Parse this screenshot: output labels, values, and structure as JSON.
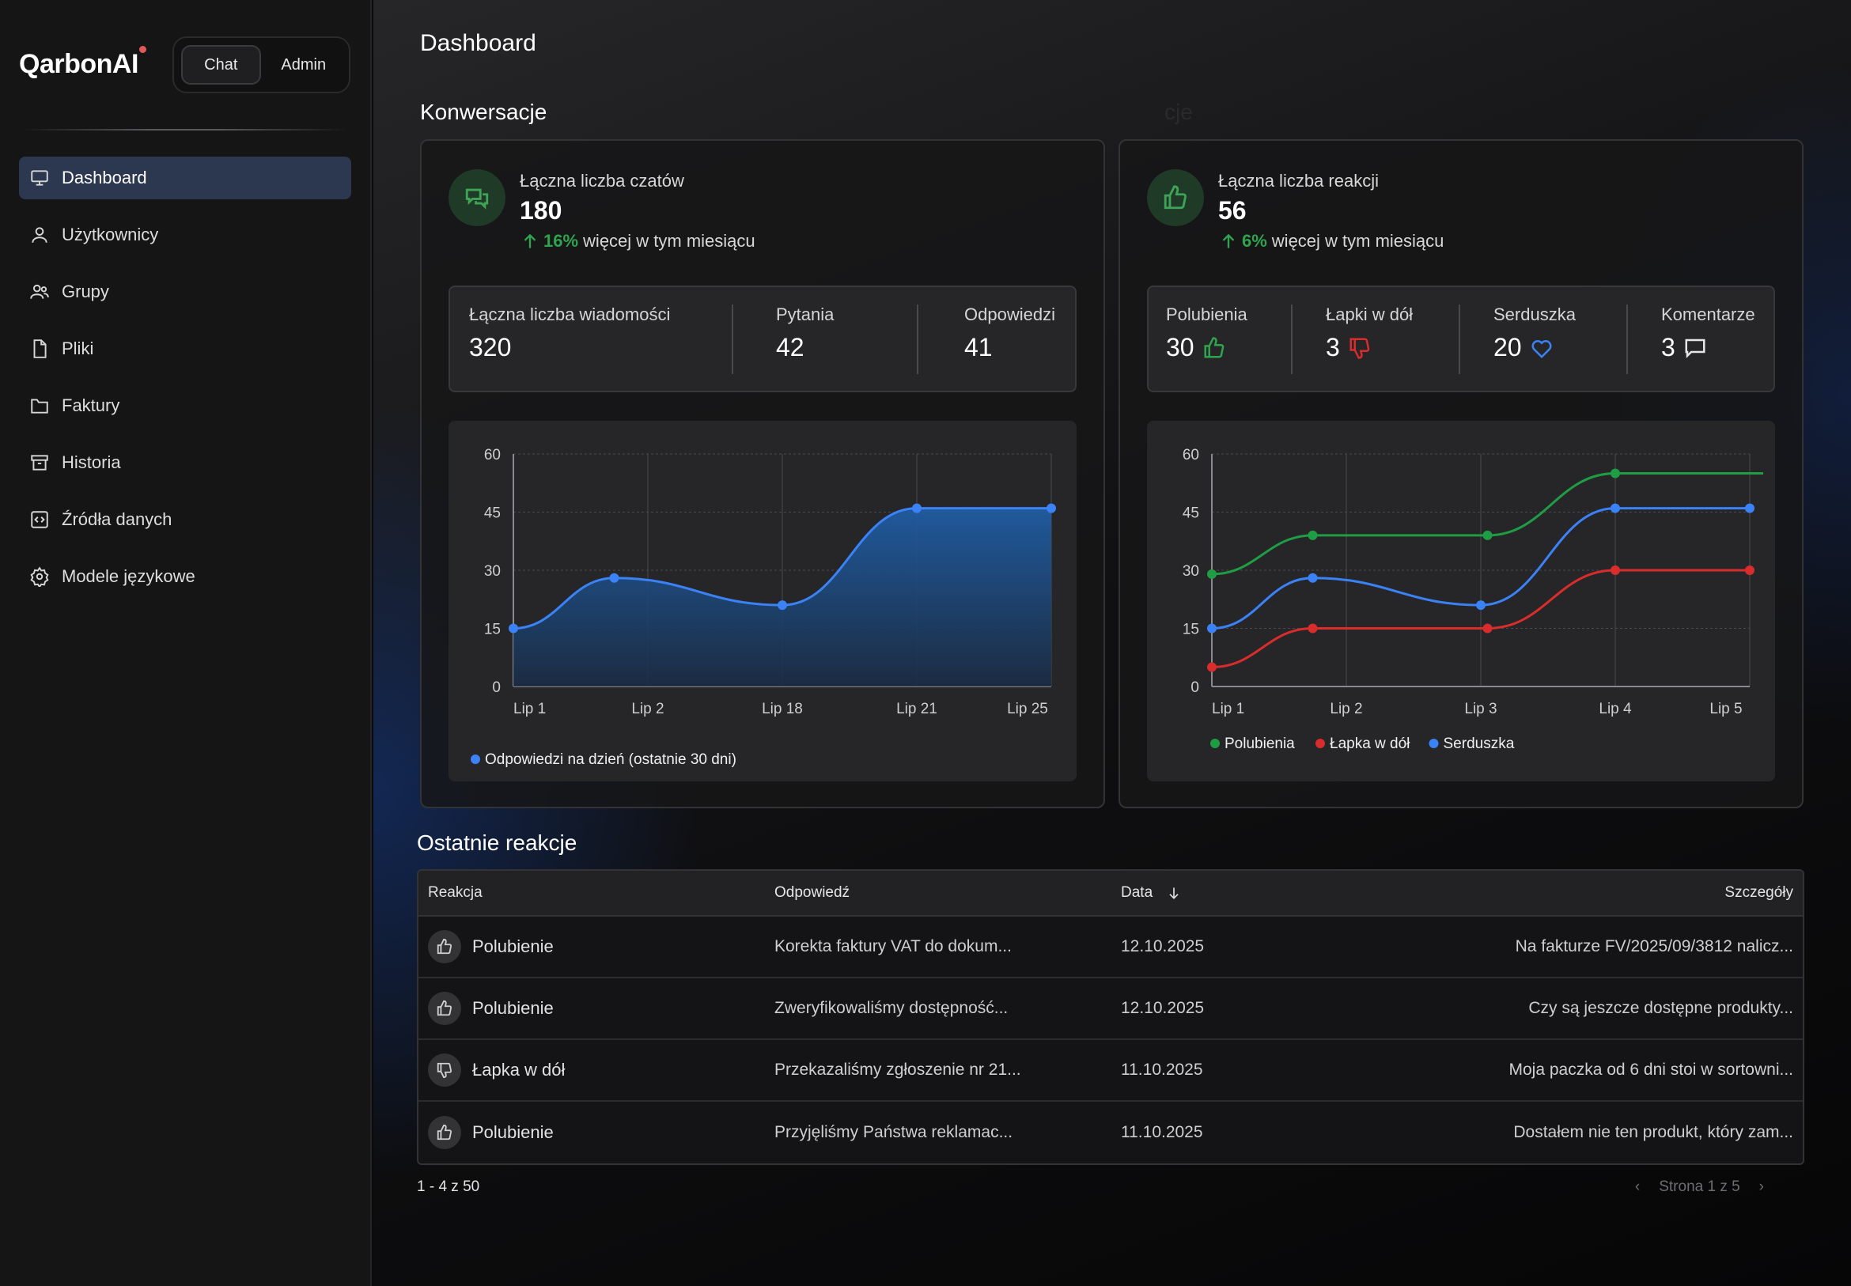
{
  "brand": "QarbonAI",
  "mode_switch": {
    "chat": "Chat",
    "admin": "Admin",
    "active": "Chat"
  },
  "sidebar": {
    "items": [
      {
        "label": "Dashboard",
        "icon": "monitor-icon",
        "active": true
      },
      {
        "label": "Użytkownicy",
        "icon": "user-icon"
      },
      {
        "label": "Grupy",
        "icon": "users-icon"
      },
      {
        "label": "Pliki",
        "icon": "file-icon"
      },
      {
        "label": "Faktury",
        "icon": "folder-icon"
      },
      {
        "label": "Historia",
        "icon": "archive-icon"
      },
      {
        "label": "Źródła danych",
        "icon": "code-file-icon"
      },
      {
        "label": "Modele językowe",
        "icon": "gear-icon"
      }
    ]
  },
  "header": {
    "title": "Dashboard"
  },
  "sections": {
    "conversations": "Konwersacje",
    "reactions_hidden": "cje",
    "recent": "Ostatnie reakcje"
  },
  "conversations": {
    "kpi_label": "Łączna liczba czatów",
    "kpi_value": "180",
    "trend_pct": "16%",
    "trend_text": "więcej w tym miesiącu",
    "stats": [
      {
        "label": "Łączna liczba wiadomości",
        "value": "320"
      },
      {
        "label": "Pytania",
        "value": "42"
      },
      {
        "label": "Odpowiedzi",
        "value": "41"
      }
    ]
  },
  "reactions": {
    "kpi_label": "Łączna liczba reakcji",
    "kpi_value": "56",
    "trend_pct": "6%",
    "trend_text": "więcej w tym miesiącu",
    "stats": [
      {
        "label": "Polubienia",
        "value": "30",
        "icon": "thumbs-up-icon"
      },
      {
        "label": "Łapki w dół",
        "value": "3",
        "icon": "thumbs-down-icon"
      },
      {
        "label": "Serduszka",
        "value": "20",
        "icon": "heart-icon"
      },
      {
        "label": "Komentarze",
        "value": "3",
        "icon": "comment-icon"
      }
    ]
  },
  "chart_data": [
    {
      "type": "area",
      "categories": [
        "Lip 1",
        "Lip 2",
        "Lip 18",
        "Lip 21",
        "Lip 25"
      ],
      "ylim": [
        0,
        60
      ],
      "yticks": [
        0,
        15,
        30,
        45,
        60
      ],
      "series": [
        {
          "name": "Odpowiedzi na dzień (ostatnie 30 dni)",
          "color": "#3b82f6",
          "points": [
            [
              0,
              15
            ],
            [
              0.75,
              28
            ],
            [
              2.0,
              21
            ],
            [
              3.0,
              46
            ],
            [
              4.0,
              46
            ]
          ]
        }
      ],
      "grid": true,
      "legend": "bottom-left"
    },
    {
      "type": "line",
      "categories": [
        "Lip 1",
        "Lip 2",
        "Lip 3",
        "Lip 4",
        "Lip 5"
      ],
      "ylim": [
        0,
        60
      ],
      "yticks": [
        0,
        15,
        30,
        45,
        60
      ],
      "series": [
        {
          "name": "Polubienia",
          "color": "#1f9d45",
          "points": [
            [
              0,
              29
            ],
            [
              0.75,
              39
            ],
            [
              2.05,
              39
            ],
            [
              3.0,
              55
            ],
            [
              4.1,
              55
            ]
          ]
        },
        {
          "name": "Łapka w dół",
          "color": "#d92c2c",
          "points": [
            [
              0,
              5
            ],
            [
              0.75,
              15
            ],
            [
              2.05,
              15
            ],
            [
              3.0,
              30
            ],
            [
              4.0,
              30
            ]
          ]
        },
        {
          "name": "Serduszka",
          "color": "#3b82f6",
          "points": [
            [
              0,
              15
            ],
            [
              0.75,
              28
            ],
            [
              2.0,
              21
            ],
            [
              3.0,
              46
            ],
            [
              4.0,
              46
            ]
          ]
        }
      ],
      "grid": true,
      "legend": "bottom-left"
    }
  ],
  "table": {
    "headers": {
      "reaction": "Reakcja",
      "answer": "Odpowiedź",
      "date": "Data",
      "details": "Szczegóły"
    },
    "rows": [
      {
        "reaction": "Polubienie",
        "icon": "thumbs-up-icon",
        "answer": "Korekta faktury VAT do dokum...",
        "date": "12.10.2025",
        "details": "Na fakturze FV/2025/09/3812 nalicz..."
      },
      {
        "reaction": "Polubienie",
        "icon": "thumbs-up-icon",
        "answer": "Zweryfikowaliśmy dostępność...",
        "date": "12.10.2025",
        "details": "Czy są jeszcze dostępne produkty..."
      },
      {
        "reaction": "Łapka w dół",
        "icon": "thumbs-down-icon",
        "answer": "Przekazaliśmy zgłoszenie nr 21...",
        "date": "11.10.2025",
        "details": "Moja paczka od 6 dni stoi w sortowni..."
      },
      {
        "reaction": "Polubienie",
        "icon": "thumbs-up-icon",
        "answer": "Przyjęliśmy Państwa reklamac...",
        "date": "11.10.2025",
        "details": "Dostałem nie ten produkt, który zam..."
      }
    ]
  },
  "pagination": {
    "range": "1 - 4 z 50",
    "page": "Strona 1 z 5"
  }
}
